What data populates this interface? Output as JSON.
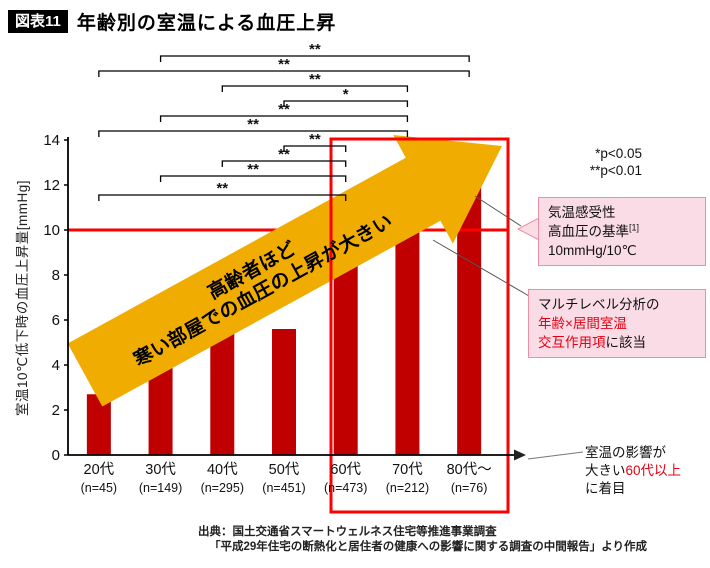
{
  "figure": {
    "badge": "図表11",
    "title": "年齢別の室温による血圧上昇"
  },
  "chart_data": {
    "type": "bar",
    "title": "年齢別の室温による血圧上昇",
    "ylabel": "室温10℃低下時の血圧上昇量[mmHg]",
    "xlabel": "",
    "ylim": [
      0,
      14
    ],
    "yticks": [
      0,
      2,
      4,
      6,
      8,
      10,
      12,
      14
    ],
    "grid": false,
    "legend": null,
    "categories": [
      "20代",
      "30代",
      "40代",
      "50代",
      "60代",
      "70代",
      "80代～"
    ],
    "sublabels": [
      "(n=45)",
      "(n=149)",
      "(n=295)",
      "(n=451)",
      "(n=473)",
      "(n=212)",
      "(n=76)"
    ],
    "values": [
      2.7,
      4.2,
      5.9,
      5.6,
      8.9,
      10.8,
      12.1
    ],
    "bar_color": "#c00000",
    "reference_line": {
      "value": 10,
      "color": "#ff0000"
    },
    "highlight_box": {
      "from_category": "60代",
      "to_category": "80代～",
      "color": "#ff0000"
    },
    "significance_brackets": [
      {
        "from": 1,
        "to": 6,
        "label": "**"
      },
      {
        "from": 0,
        "to": 6,
        "label": "**"
      },
      {
        "from": 2,
        "to": 5,
        "label": "**"
      },
      {
        "from": 3,
        "to": 5,
        "label": "*"
      },
      {
        "from": 1,
        "to": 5,
        "label": "**"
      },
      {
        "from": 0,
        "to": 5,
        "label": "**"
      },
      {
        "from": 3,
        "to": 4,
        "label": "**"
      },
      {
        "from": 2,
        "to": 4,
        "label": "**"
      },
      {
        "from": 1,
        "to": 4,
        "label": "**"
      },
      {
        "from": 0,
        "to": 4,
        "label": "**"
      }
    ]
  },
  "annotations": {
    "arrow_text_line1": "高齢者ほど",
    "arrow_text_line2": "寒い部屋での血圧の上昇が大きい",
    "pvalues": {
      "line1": "*p<0.05",
      "line2": "**p<0.01"
    },
    "callout1": {
      "line1": "気温感受性",
      "line2": "高血圧の基準",
      "line2_sup": "[1]",
      "line3": "10mmHg/10℃"
    },
    "callout2": {
      "line1": "マルチレベル分析の",
      "line2": "年齢×居間室温",
      "line3_red": "交互作用項",
      "line3_black": "に該当"
    },
    "focus_note": {
      "line1": "室温の影響が",
      "line2_pre": "大きい",
      "line2_red": "60代以上",
      "line3": "に着目"
    }
  },
  "source": {
    "line1": "出典：国土交通省スマートウェルネス住宅等推進事業調査",
    "line2": "「平成29年住宅の断熱化と居住者の健康への影響に関する調査の中間報告」より作成"
  },
  "colors": {
    "bar": "#c00000",
    "reference": "#ff0000",
    "highlight": "#ff0000",
    "arrow": "#f0ac00",
    "callout_bg": "#fadce7",
    "callout_border": "#ef8fa5",
    "red_text": "#e60012"
  }
}
